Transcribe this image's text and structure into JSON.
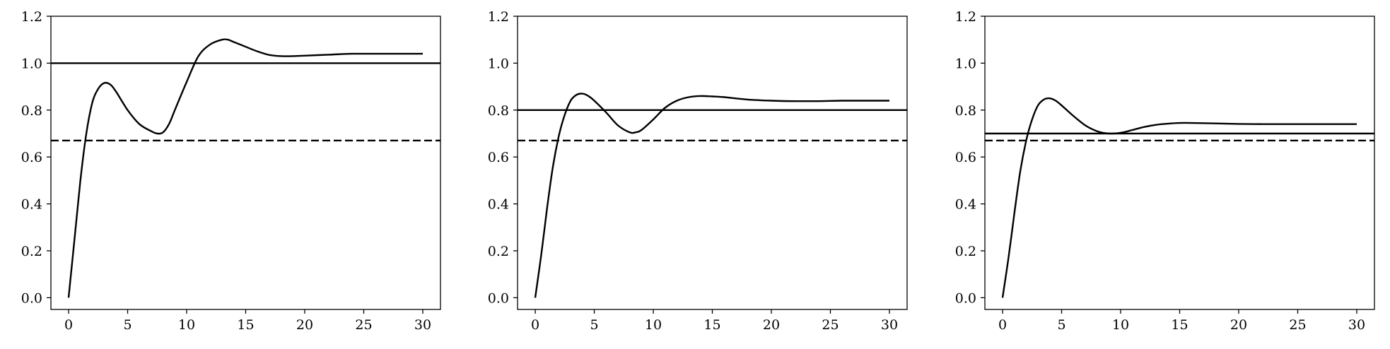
{
  "chart_data": [
    {
      "type": "line",
      "xlim": [
        -1.5,
        31.5
      ],
      "ylim": [
        -0.05,
        1.2
      ],
      "x_ticks": [
        "0",
        "5",
        "10",
        "15",
        "20",
        "25",
        "30"
      ],
      "y_ticks": [
        "0.0",
        "0.2",
        "0.4",
        "0.6",
        "0.8",
        "1.0",
        "1.2"
      ],
      "grid": false,
      "reference_lines": {
        "solid": 1.0,
        "dashed": 0.67
      },
      "series": [
        {
          "x": [
            0,
            0.5,
            1,
            1.5,
            2,
            2.5,
            3,
            3.5,
            4,
            5,
            6,
            7,
            7.5,
            8,
            8.5,
            9,
            10,
            11,
            12,
            13,
            13.5,
            14,
            15,
            16,
            17,
            18,
            19,
            20,
            22,
            24,
            26,
            28,
            30
          ],
          "y": [
            0.0,
            0.25,
            0.5,
            0.7,
            0.83,
            0.89,
            0.915,
            0.91,
            0.88,
            0.8,
            0.74,
            0.71,
            0.7,
            0.705,
            0.74,
            0.8,
            0.92,
            1.03,
            1.08,
            1.1,
            1.1,
            1.09,
            1.07,
            1.05,
            1.035,
            1.03,
            1.03,
            1.032,
            1.036,
            1.04,
            1.04,
            1.04,
            1.04
          ]
        }
      ]
    },
    {
      "type": "line",
      "xlim": [
        -1.5,
        31.5
      ],
      "ylim": [
        -0.05,
        1.2
      ],
      "x_ticks": [
        "0",
        "5",
        "10",
        "15",
        "20",
        "25",
        "30"
      ],
      "y_ticks": [
        "0.0",
        "0.2",
        "0.4",
        "0.6",
        "0.8",
        "1.0",
        "1.2"
      ],
      "grid": false,
      "reference_lines": {
        "solid": 0.8,
        "dashed": 0.67
      },
      "series": [
        {
          "x": [
            0,
            0.5,
            1,
            1.5,
            2,
            2.5,
            3,
            3.5,
            4,
            4.5,
            5,
            6,
            7,
            8,
            8.5,
            9,
            10,
            11,
            12,
            13,
            14,
            15,
            16,
            18,
            20,
            22,
            24,
            26,
            28,
            30
          ],
          "y": [
            0.0,
            0.18,
            0.38,
            0.56,
            0.69,
            0.78,
            0.84,
            0.865,
            0.87,
            0.86,
            0.84,
            0.79,
            0.735,
            0.705,
            0.705,
            0.715,
            0.76,
            0.81,
            0.84,
            0.855,
            0.86,
            0.858,
            0.855,
            0.845,
            0.84,
            0.838,
            0.838,
            0.84,
            0.84,
            0.84
          ]
        }
      ]
    },
    {
      "type": "line",
      "xlim": [
        -1.5,
        31.5
      ],
      "ylim": [
        -0.05,
        1.2
      ],
      "x_ticks": [
        "0",
        "5",
        "10",
        "15",
        "20",
        "25",
        "30"
      ],
      "y_ticks": [
        "0.0",
        "0.2",
        "0.4",
        "0.6",
        "0.8",
        "1.0",
        "1.2"
      ],
      "grid": false,
      "reference_lines": {
        "solid": 0.7,
        "dashed": 0.67
      },
      "series": [
        {
          "x": [
            0,
            0.5,
            1,
            1.5,
            2,
            2.5,
            3,
            3.5,
            4,
            4.5,
            5,
            6,
            7,
            8,
            9,
            10,
            11,
            12,
            13,
            14,
            15,
            16,
            18,
            20,
            22,
            24,
            26,
            28,
            30
          ],
          "y": [
            0.0,
            0.17,
            0.36,
            0.54,
            0.67,
            0.76,
            0.82,
            0.845,
            0.85,
            0.84,
            0.82,
            0.775,
            0.735,
            0.71,
            0.7,
            0.703,
            0.715,
            0.728,
            0.737,
            0.742,
            0.745,
            0.745,
            0.743,
            0.741,
            0.74,
            0.74,
            0.74,
            0.74,
            0.74
          ]
        }
      ]
    }
  ]
}
